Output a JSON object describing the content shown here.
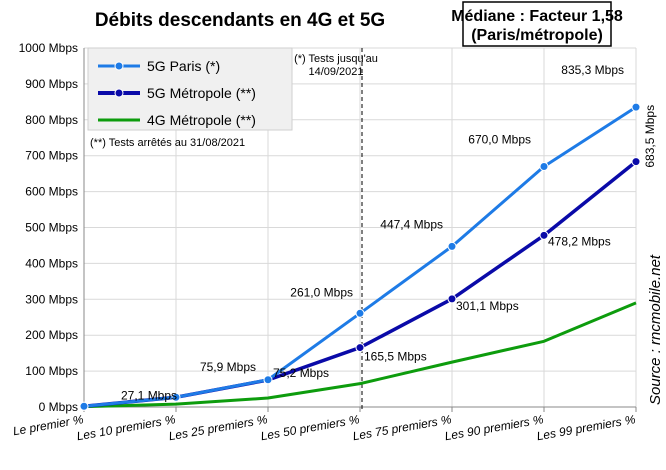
{
  "chart_data": {
    "type": "line",
    "title": "Débits descendants en 4G et 5G",
    "median_box": {
      "line1": "Médiane : Facteur 1,58",
      "line2": "(Paris/métropole)"
    },
    "categories": [
      "Le premier %",
      "Les 10 premiers %",
      "Les 25 premiers %",
      "Les 50 premiers %",
      "Les 75 premiers %",
      "Les 90 premiers %",
      "Les 99 premiers %"
    ],
    "y_ticks": [
      "0 Mbps",
      "100 Mbps",
      "200 Mbps",
      "300 Mbps",
      "400 Mbps",
      "500 Mbps",
      "600 Mbps",
      "700 Mbps",
      "800 Mbps",
      "900 Mbps",
      "1000 Mbps"
    ],
    "ylim": [
      0,
      1000
    ],
    "xlabel": "",
    "ylabel": "",
    "grid": true,
    "legend_position": "top-left",
    "series": [
      {
        "name": "5G Paris (*)",
        "color": "#1e7be6",
        "marker": true,
        "values": [
          2,
          27.1,
          75.9,
          261.0,
          447.4,
          670.0,
          835.3
        ],
        "labels": [
          "",
          "",
          "75,9 Mbps",
          "261,0 Mbps",
          "447,4 Mbps",
          "670,0 Mbps",
          "835,3 Mbps"
        ]
      },
      {
        "name": "5G Métropole (**)",
        "color": "#0a0aa8",
        "marker": true,
        "values": [
          2,
          27.1,
          75.2,
          165.5,
          301.1,
          478.2,
          683.5
        ],
        "labels": [
          "",
          "27,1 Mbps",
          "75,2 Mbps",
          "165,5 Mbps",
          "301,1 Mbps",
          "478,2 Mbps",
          "683,5 Mbps"
        ]
      },
      {
        "name": "4G Métropole (**)",
        "color": "#0d9c0d",
        "marker": false,
        "values": [
          1,
          8,
          25,
          65,
          125,
          183,
          290
        ],
        "labels": [
          "",
          "",
          "",
          "",
          "",
          "",
          ""
        ]
      }
    ],
    "annotations": {
      "vline_note_1": "(*) Tests jusqu'au",
      "vline_note_2": "14/09/2021",
      "tests_stopped": "(**) Tests arrêtés au 31/08/2021",
      "source": "Source : rncmobile.net"
    }
  }
}
